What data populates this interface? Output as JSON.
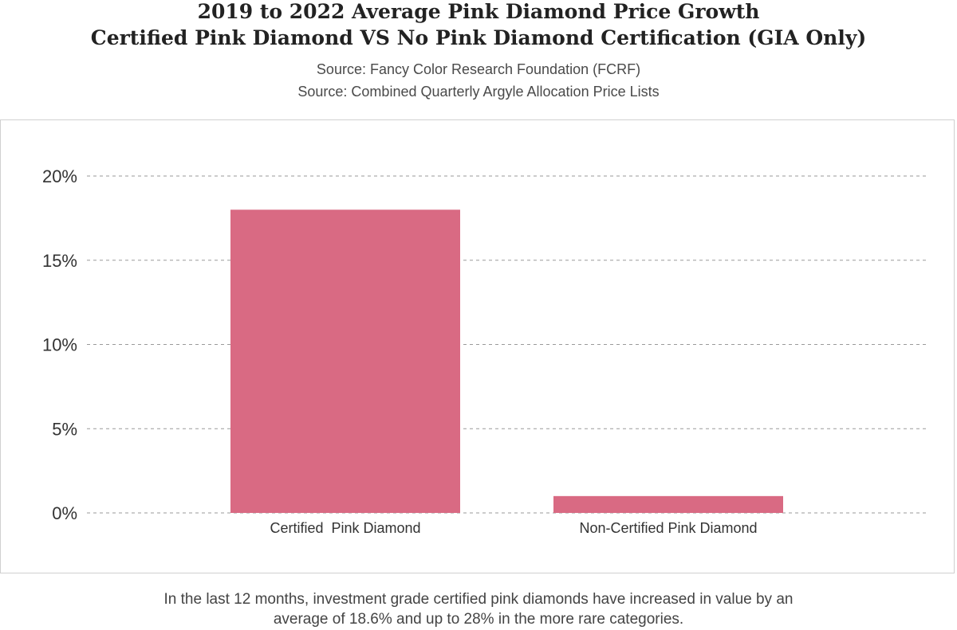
{
  "header": {
    "title_line_1": "2019 to 2022 Average Pink Diamond Price Growth",
    "title_line_2": "Certified Pink Diamond VS No Pink Diamond Certification (GIA Only)",
    "source_1": "Source: Fancy Color Research Foundation (FCRF)",
    "source_2": "Source: Combined Quarterly Argyle Allocation Price Lists"
  },
  "footnote": {
    "line_1": "In the last 12 months, investment grade certified pink diamonds have increased in value by an",
    "line_2": "average of 18.6% and up to 28% in the more rare categories."
  },
  "colors": {
    "bar": "#d96a83",
    "grid": "#9a9a9a",
    "axis_text": "#333333"
  },
  "chart_data": {
    "type": "bar",
    "categories": [
      "Certified  Pink Diamond",
      "Non-Certified Pink Diamond"
    ],
    "values": [
      18.0,
      1.0
    ],
    "yticks": [
      0,
      5,
      10,
      15,
      20
    ],
    "ytick_labels": [
      "0%",
      "5%",
      "10%",
      "15%",
      "20%"
    ],
    "ylim": [
      0,
      20
    ],
    "grid": true,
    "legend": "none"
  }
}
